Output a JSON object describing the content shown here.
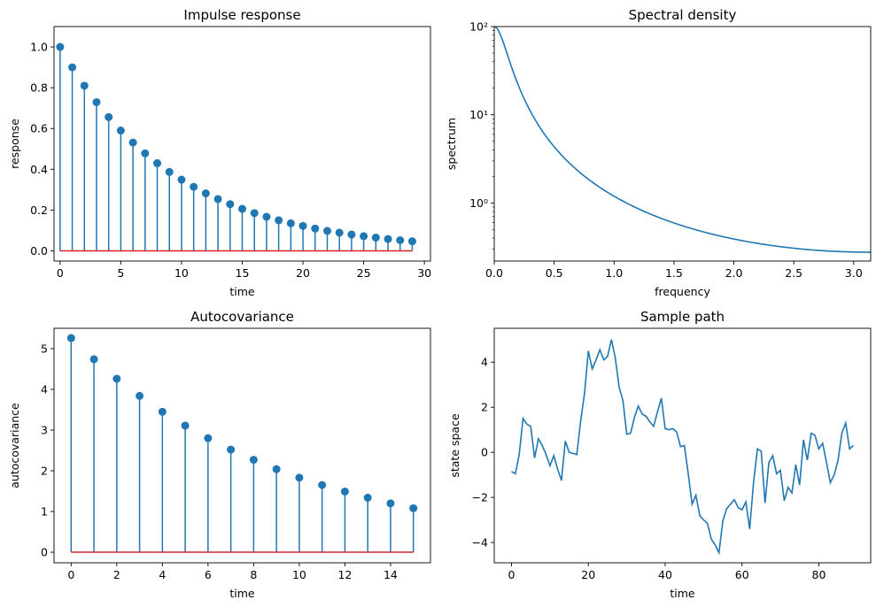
{
  "chart_data": [
    {
      "type": "stem",
      "title": "Impulse response",
      "xlabel": "time",
      "ylabel": "response",
      "xlim": [
        -0.5,
        30.5
      ],
      "ylim": [
        -0.05,
        1.1
      ],
      "xticks": [
        0,
        5,
        10,
        15,
        20,
        25,
        30
      ],
      "yticks": [
        0.0,
        0.2,
        0.4,
        0.6,
        0.8,
        1.0
      ],
      "ytick_labels": [
        "0.0",
        "0.2",
        "0.4",
        "0.6",
        "0.8",
        "1.0"
      ],
      "x": [
        0,
        1,
        2,
        3,
        4,
        5,
        6,
        7,
        8,
        9,
        10,
        11,
        12,
        13,
        14,
        15,
        16,
        17,
        18,
        19,
        20,
        21,
        22,
        23,
        24,
        25,
        26,
        27,
        28,
        29
      ],
      "y": [
        1.0,
        0.9,
        0.81,
        0.729,
        0.656,
        0.59,
        0.531,
        0.478,
        0.43,
        0.387,
        0.349,
        0.314,
        0.282,
        0.254,
        0.229,
        0.206,
        0.185,
        0.167,
        0.15,
        0.135,
        0.122,
        0.109,
        0.098,
        0.089,
        0.08,
        0.072,
        0.065,
        0.058,
        0.052,
        0.047
      ],
      "colors": {
        "stem": "#1f77b4",
        "baseline": "#d62728"
      }
    },
    {
      "type": "line",
      "title": "Spectral density",
      "xlabel": "frequency",
      "ylabel": "spectrum",
      "yscale": "log",
      "xlim": [
        0,
        3.1416
      ],
      "ylim": [
        0.22,
        100
      ],
      "xticks": [
        0.0,
        0.5,
        1.0,
        1.5,
        2.0,
        2.5,
        3.0
      ],
      "xtick_labels": [
        "0.0",
        "0.5",
        "1.0",
        "1.5",
        "2.0",
        "2.5",
        "3.0"
      ],
      "yticks": [
        1,
        10,
        100
      ],
      "ytick_labels": [
        "10⁰",
        "10¹",
        "10²"
      ],
      "function": "1 / (1 - 2*0.9*cos(w) + 0.81)",
      "colors": {
        "line": "#1f77b4"
      }
    },
    {
      "type": "stem",
      "title": "Autocovariance",
      "xlabel": "time",
      "ylabel": "autocovariance",
      "xlim": [
        -0.75,
        15.75
      ],
      "ylim": [
        -0.26,
        5.5
      ],
      "xticks": [
        0,
        2,
        4,
        6,
        8,
        10,
        12,
        14
      ],
      "yticks": [
        0,
        1,
        2,
        3,
        4,
        5
      ],
      "x": [
        0,
        1,
        2,
        3,
        4,
        5,
        6,
        7,
        8,
        9,
        10,
        11,
        12,
        13,
        14,
        15
      ],
      "y": [
        5.26,
        4.74,
        4.26,
        3.84,
        3.45,
        3.11,
        2.8,
        2.52,
        2.27,
        2.04,
        1.83,
        1.65,
        1.49,
        1.34,
        1.2,
        1.08
      ],
      "colors": {
        "stem": "#1f77b4",
        "baseline": "#d62728"
      }
    },
    {
      "type": "line",
      "title": "Sample path",
      "xlabel": "time",
      "ylabel": "state space",
      "xlim": [
        -4.5,
        93.5
      ],
      "ylim": [
        -4.9,
        5.5
      ],
      "xticks": [
        0,
        20,
        40,
        60,
        80
      ],
      "yticks": [
        -4,
        -2,
        0,
        2,
        4
      ],
      "ytick_labels": [
        "−4",
        "−2",
        "0",
        "2",
        "4"
      ],
      "x": [
        0,
        1,
        2,
        3,
        4,
        5,
        6,
        7,
        8,
        9,
        10,
        11,
        12,
        13,
        14,
        15,
        16,
        17,
        18,
        19,
        20,
        21,
        22,
        23,
        24,
        25,
        26,
        27,
        28,
        29,
        30,
        31,
        32,
        33,
        34,
        35,
        36,
        37,
        38,
        39,
        40,
        41,
        42,
        43,
        44,
        45,
        46,
        47,
        48,
        49,
        50,
        51,
        52,
        53,
        54,
        55,
        56,
        57,
        58,
        59,
        60,
        61,
        62,
        63,
        64,
        65,
        66,
        67,
        68,
        69,
        70,
        71,
        72,
        73,
        74,
        75,
        76,
        77,
        78,
        79,
        80,
        81,
        82,
        83,
        84,
        85,
        86,
        87,
        88,
        89
      ],
      "y": [
        -0.85,
        -0.95,
        -0.1,
        1.5,
        1.25,
        1.15,
        -0.25,
        0.6,
        0.3,
        -0.1,
        -0.6,
        -0.15,
        -0.75,
        -1.25,
        0.5,
        0.0,
        -0.05,
        -0.1,
        1.4,
        2.6,
        4.5,
        3.7,
        4.1,
        4.55,
        4.1,
        4.25,
        5.0,
        4.2,
        2.9,
        2.3,
        0.8,
        0.85,
        1.55,
        2.05,
        1.7,
        1.6,
        1.35,
        1.15,
        1.8,
        2.4,
        1.05,
        1.0,
        1.05,
        0.9,
        0.25,
        0.3,
        -0.95,
        -2.3,
        -1.9,
        -2.8,
        -3.0,
        -3.15,
        -3.85,
        -4.1,
        -4.45,
        -3.05,
        -2.5,
        -2.3,
        -2.1,
        -2.45,
        -2.55,
        -2.2,
        -3.4,
        -1.35,
        0.15,
        0.05,
        -2.25,
        -0.45,
        -0.15,
        -0.95,
        -0.8,
        -2.15,
        -1.55,
        -1.8,
        -0.55,
        -1.45,
        0.55,
        -0.35,
        0.85,
        0.75,
        0.15,
        0.4,
        -0.45,
        -1.35,
        -1.0,
        -0.35,
        0.85,
        1.3,
        0.15,
        0.3
      ],
      "colors": {
        "line": "#1f77b4"
      }
    }
  ]
}
